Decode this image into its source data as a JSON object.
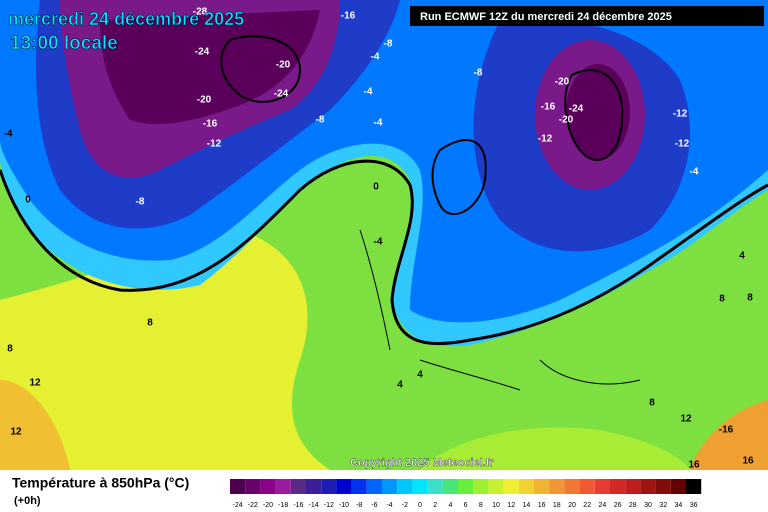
{
  "header": {
    "date": "mercredi 24 décembre 2025",
    "time": "13:00 locale",
    "run": "Run ECMWF 12Z du mercredi 24 décembre 2025",
    "copyright": "Copyright 2025 Meteociel.fr"
  },
  "footer": {
    "title": "Température à 850hPa (°C)",
    "step": "(+0h)"
  },
  "legend": [
    {
      "value": -24,
      "color": "#4d004d"
    },
    {
      "value": -22,
      "color": "#6b006b"
    },
    {
      "value": -20,
      "color": "#8a008a"
    },
    {
      "value": -18,
      "color": "#9a1aa0"
    },
    {
      "value": -16,
      "color": "#5a2a8a"
    },
    {
      "value": -14,
      "color": "#3a1e9a"
    },
    {
      "value": -12,
      "color": "#1e1eb4"
    },
    {
      "value": -10,
      "color": "#0000d0"
    },
    {
      "value": -8,
      "color": "#0032f0"
    },
    {
      "value": -6,
      "color": "#0064ff"
    },
    {
      "value": -4,
      "color": "#0096ff"
    },
    {
      "value": -2,
      "color": "#00c8ff"
    },
    {
      "value": 0,
      "color": "#00e6ff"
    },
    {
      "value": 2,
      "color": "#3ce0c8"
    },
    {
      "value": 4,
      "color": "#46e678"
    },
    {
      "value": 6,
      "color": "#64f03c"
    },
    {
      "value": 8,
      "color": "#a0f032"
    },
    {
      "value": 10,
      "color": "#c8f032"
    },
    {
      "value": 12,
      "color": "#f0f032"
    },
    {
      "value": 14,
      "color": "#f0d232"
    },
    {
      "value": 16,
      "color": "#f0b432"
    },
    {
      "value": 18,
      "color": "#f09632"
    },
    {
      "value": 20,
      "color": "#f07832"
    },
    {
      "value": 22,
      "color": "#f05a32"
    },
    {
      "value": 24,
      "color": "#e63c32"
    },
    {
      "value": 26,
      "color": "#d22828"
    },
    {
      "value": 28,
      "color": "#be1e1e"
    },
    {
      "value": 30,
      "color": "#a01414"
    },
    {
      "value": 32,
      "color": "#820a0a"
    },
    {
      "value": 34,
      "color": "#640000"
    },
    {
      "value": 36,
      "color": "#000000"
    }
  ],
  "contours": [
    -28,
    -16,
    -24,
    -8,
    -4,
    -20,
    -20,
    -24,
    -4,
    -8,
    -4,
    -16,
    -12,
    -4,
    -8,
    -20,
    -16,
    -24,
    -20,
    -12,
    -12,
    -12,
    -4,
    -8,
    0,
    0,
    -4,
    4,
    8,
    8,
    8,
    8,
    12,
    12,
    4,
    4,
    8,
    12,
    -16,
    16,
    16
  ]
}
